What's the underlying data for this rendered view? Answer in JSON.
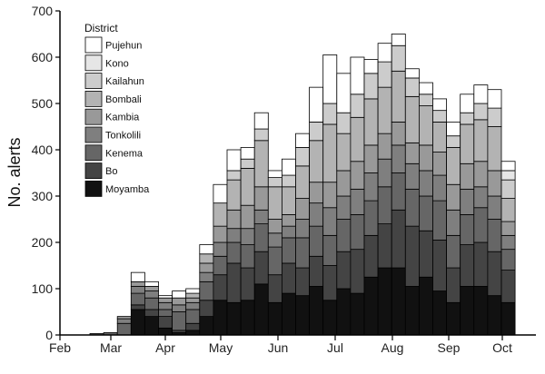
{
  "chart_data": {
    "type": "bar",
    "stacked": true,
    "ylabel": "No. alerts",
    "xlabel": "",
    "ylim": [
      0,
      700
    ],
    "yticks": [
      0,
      100,
      200,
      300,
      400,
      500,
      600,
      700
    ],
    "x_ticks": [
      "Feb",
      "Mar",
      "Apr",
      "May",
      "Jun",
      "Jul",
      "Aug",
      "Sep",
      "Oct"
    ],
    "legend_title": "District",
    "legend_position": "top-left",
    "series": [
      {
        "name": "Moyamba",
        "color": "#111111",
        "values": [
          0,
          0,
          0,
          55,
          40,
          15,
          5,
          10,
          40,
          75,
          70,
          75,
          110,
          70,
          90,
          85,
          105,
          75,
          100,
          90,
          125,
          145,
          145,
          105,
          125,
          95,
          70,
          105,
          105,
          85,
          70
        ]
      },
      {
        "name": "Bo",
        "color": "#444444",
        "values": [
          0,
          0,
          0,
          10,
          15,
          25,
          5,
          15,
          35,
          55,
          85,
          70,
          70,
          60,
          65,
          60,
          65,
          75,
          80,
          95,
          90,
          95,
          125,
          130,
          100,
          110,
          75,
          90,
          95,
          95,
          70
        ]
      },
      {
        "name": "Kenema",
        "color": "#666666",
        "values": [
          3,
          5,
          25,
          25,
          25,
          15,
          40,
          30,
          40,
          40,
          45,
          50,
          60,
          60,
          55,
          65,
          65,
          65,
          70,
          75,
          75,
          80,
          80,
          80,
          75,
          85,
          70,
          65,
          75,
          70,
          45
        ]
      },
      {
        "name": "Tonkolili",
        "color": "#7f7f7f",
        "values": [
          0,
          0,
          10,
          15,
          15,
          15,
          15,
          15,
          20,
          30,
          30,
          35,
          30,
          30,
          25,
          40,
          50,
          60,
          50,
          55,
          60,
          60,
          60,
          55,
          55,
          55,
          55,
          55,
          45,
          50,
          30
        ]
      },
      {
        "name": "Kambia",
        "color": "#999999",
        "values": [
          0,
          0,
          5,
          10,
          10,
          10,
          15,
          10,
          20,
          35,
          40,
          50,
          50,
          30,
          25,
          45,
          45,
          55,
          55,
          60,
          60,
          55,
          50,
          45,
          55,
          50,
          55,
          55,
          55,
          55,
          30
        ]
      },
      {
        "name": "Bombali",
        "color": "#b3b3b3",
        "values": [
          0,
          0,
          0,
          0,
          0,
          0,
          0,
          10,
          20,
          50,
          65,
          80,
          100,
          70,
          60,
          70,
          90,
          125,
          80,
          95,
          100,
          100,
          110,
          100,
          85,
          65,
          80,
          85,
          90,
          95,
          50
        ]
      },
      {
        "name": "Kailahun",
        "color": "#cccccc",
        "values": [
          0,
          0,
          0,
          0,
          0,
          0,
          0,
          0,
          0,
          0,
          20,
          20,
          25,
          20,
          25,
          40,
          40,
          45,
          45,
          50,
          55,
          55,
          55,
          40,
          25,
          25,
          25,
          25,
          35,
          40,
          40
        ]
      },
      {
        "name": "Kono",
        "color": "#e6e6e6",
        "values": [
          0,
          0,
          0,
          0,
          0,
          0,
          0,
          0,
          0,
          0,
          0,
          0,
          0,
          0,
          0,
          0,
          0,
          0,
          0,
          0,
          0,
          0,
          0,
          0,
          0,
          0,
          0,
          0,
          0,
          0,
          20
        ]
      },
      {
        "name": "Pujehun",
        "color": "#ffffff",
        "values": [
          0,
          0,
          0,
          20,
          10,
          5,
          15,
          10,
          20,
          40,
          45,
          25,
          35,
          15,
          35,
          30,
          75,
          105,
          85,
          80,
          30,
          40,
          25,
          20,
          25,
          25,
          30,
          40,
          40,
          40,
          20
        ]
      }
    ]
  }
}
